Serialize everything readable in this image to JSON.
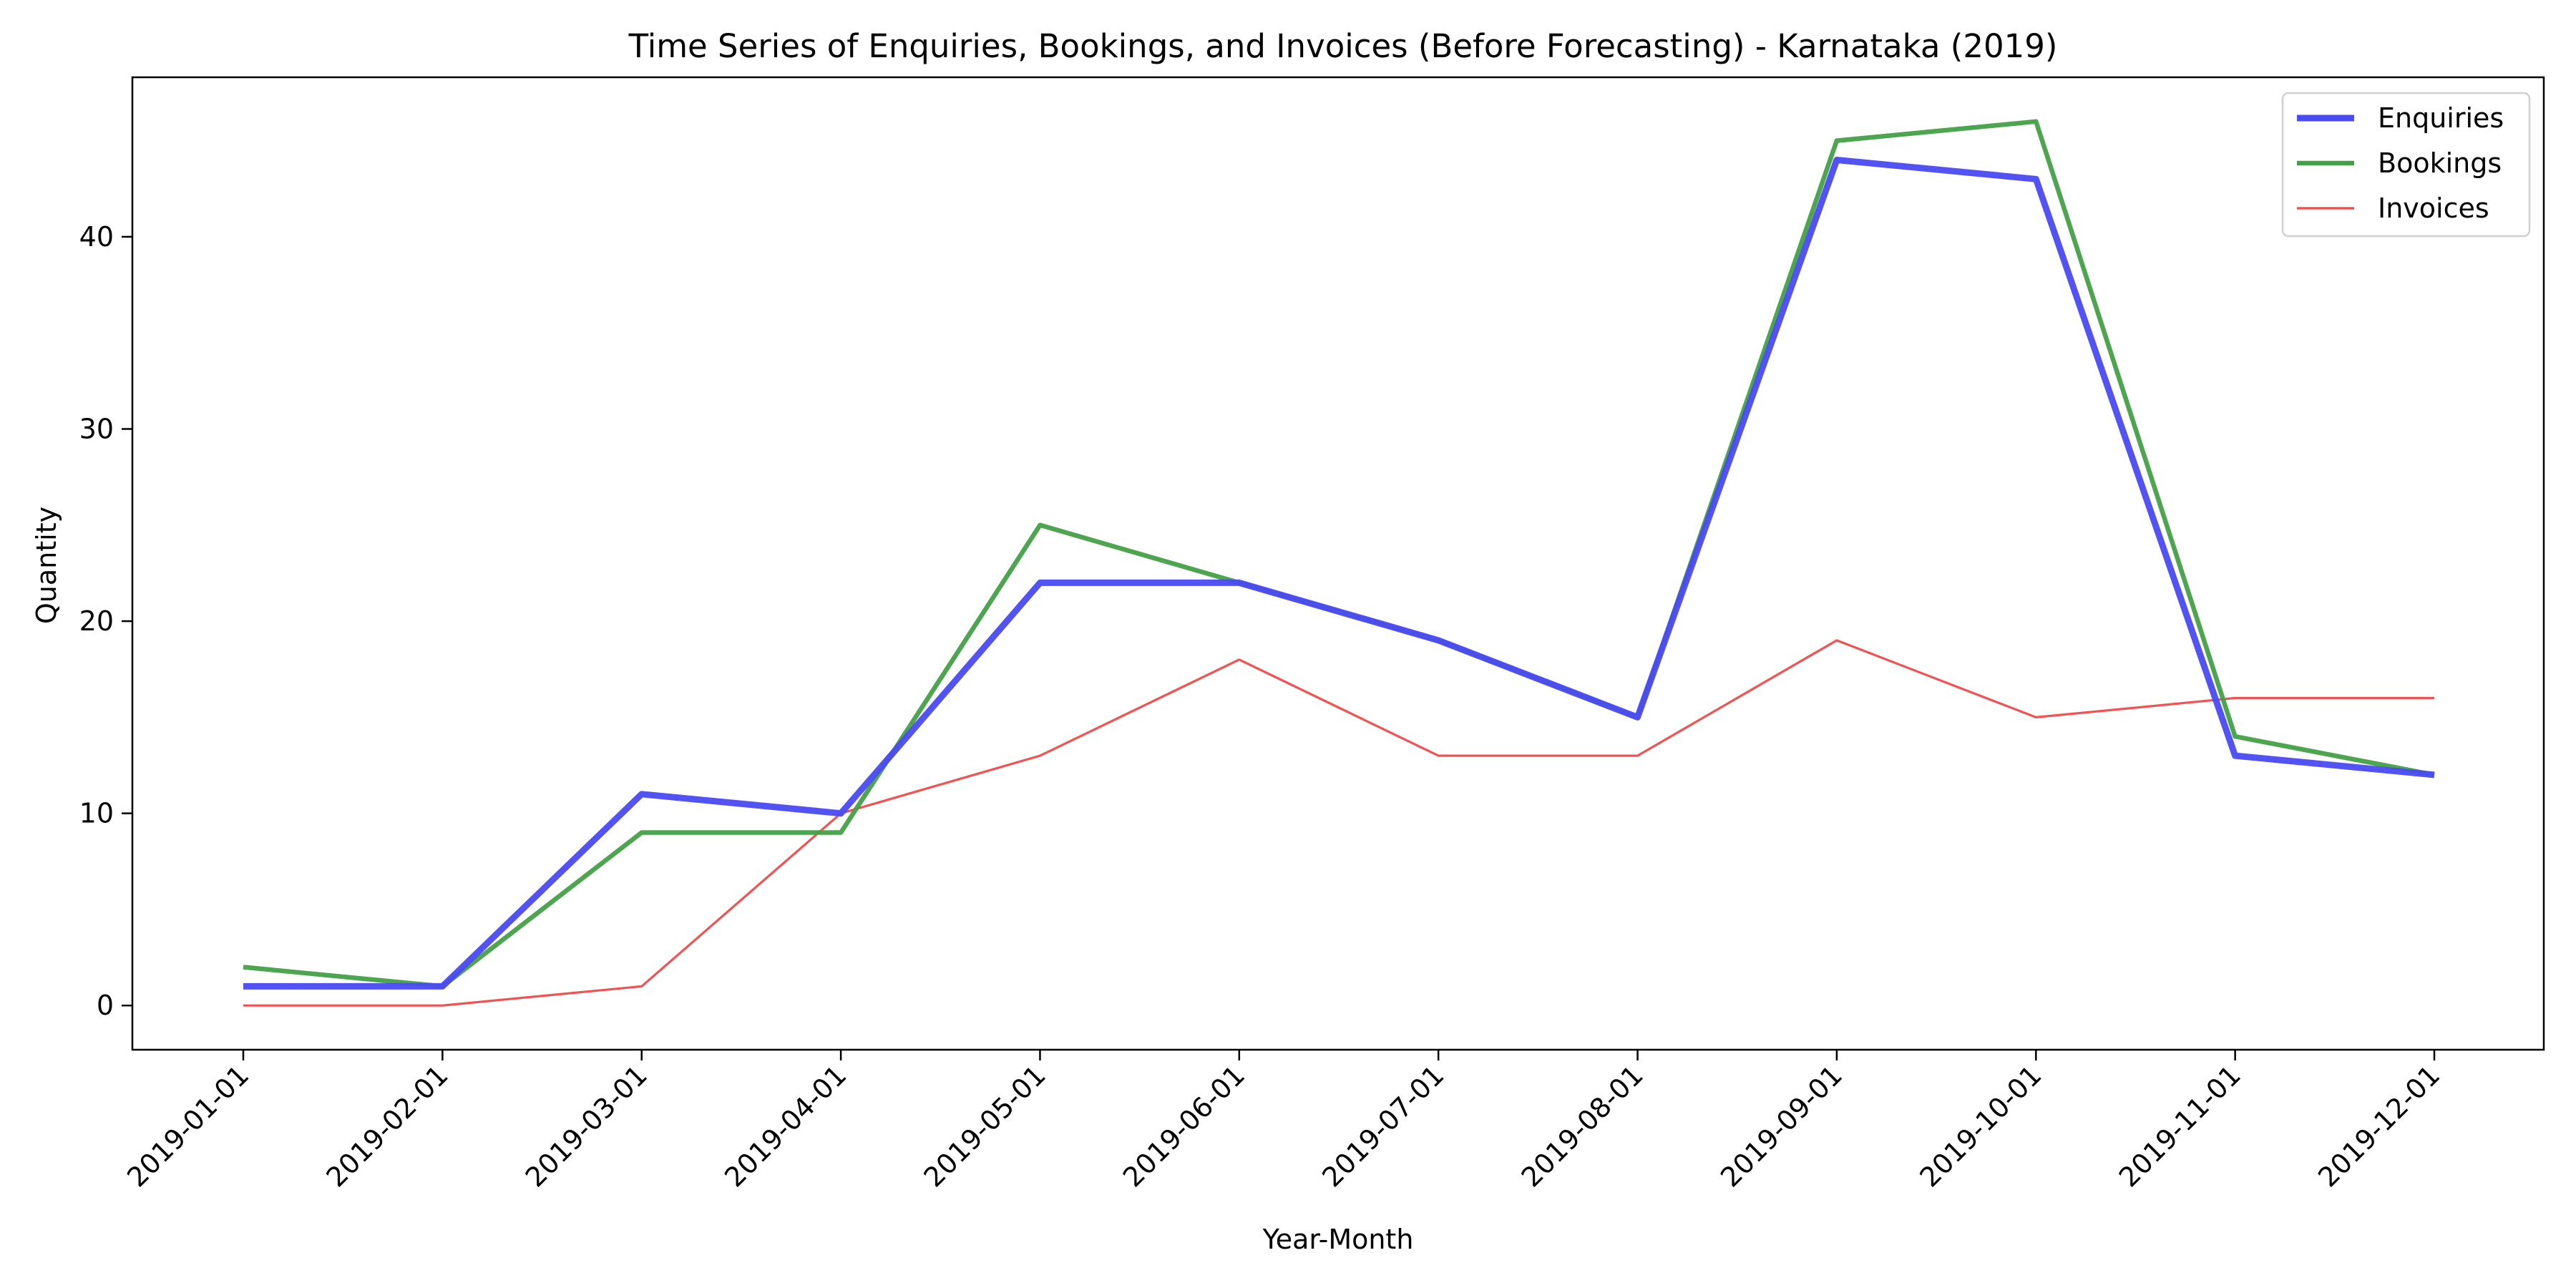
{
  "chart_data": {
    "type": "line",
    "title": "Time Series of Enquiries, Bookings, and Invoices (Before Forecasting) - Karnataka (2019)",
    "xlabel": "Year-Month",
    "ylabel": "Quantity",
    "x": [
      "2019-01-01",
      "2019-02-01",
      "2019-03-01",
      "2019-04-01",
      "2019-05-01",
      "2019-06-01",
      "2019-07-01",
      "2019-08-01",
      "2019-09-01",
      "2019-10-01",
      "2019-11-01",
      "2019-12-01"
    ],
    "ylim": [
      -2.3,
      48.3
    ],
    "yticks": [
      0,
      10,
      20,
      30,
      40
    ],
    "grid": false,
    "legend_position": "top-right",
    "series": [
      {
        "name": "Enquiries",
        "color": "#4a4af2",
        "values": [
          1,
          1,
          11,
          10,
          22,
          22,
          19,
          15,
          44,
          43,
          13,
          12
        ]
      },
      {
        "name": "Bookings",
        "color": "#43a047",
        "values": [
          2,
          1,
          9,
          9,
          25,
          22,
          19,
          15,
          45,
          46,
          14,
          12
        ]
      },
      {
        "name": "Invoices",
        "color": "#f04a4a",
        "values": [
          0,
          0,
          1,
          10,
          13,
          18,
          13,
          13,
          19,
          15,
          16,
          16
        ]
      }
    ]
  }
}
